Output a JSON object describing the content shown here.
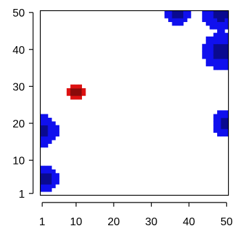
{
  "chart_data": {
    "type": "heatmap",
    "title": "",
    "xlabel": "",
    "ylabel": "",
    "xlim": [
      1,
      50
    ],
    "ylim": [
      1,
      50
    ],
    "x_ticks": [
      1,
      10,
      20,
      30,
      40,
      50
    ],
    "y_ticks": [
      1,
      10,
      20,
      30,
      40,
      50
    ],
    "grid": false,
    "legend": "none",
    "colors": {
      "low": "#1010ee",
      "low_core": "#0a0a90",
      "high": "#dd1111",
      "high_core": "#8a0a0a",
      "background": "#ffffff"
    },
    "blobs": [
      {
        "kind": "low",
        "cx": 48.5,
        "cy": 39.5,
        "r": 5.0
      },
      {
        "kind": "low",
        "cx": 48.5,
        "cy": 50,
        "r": 5.2
      },
      {
        "kind": "low",
        "cx": 37,
        "cy": 50,
        "r": 3.5
      },
      {
        "kind": "low",
        "cx": 50,
        "cy": 20,
        "r": 3.8
      },
      {
        "kind": "low",
        "cx": 1,
        "cy": 18,
        "r": 4.2
      },
      {
        "kind": "low",
        "cx": 2,
        "cy": 5,
        "r": 3.5
      },
      {
        "kind": "high",
        "cx": 10,
        "cy": 28.5,
        "r": 2.4
      }
    ]
  }
}
